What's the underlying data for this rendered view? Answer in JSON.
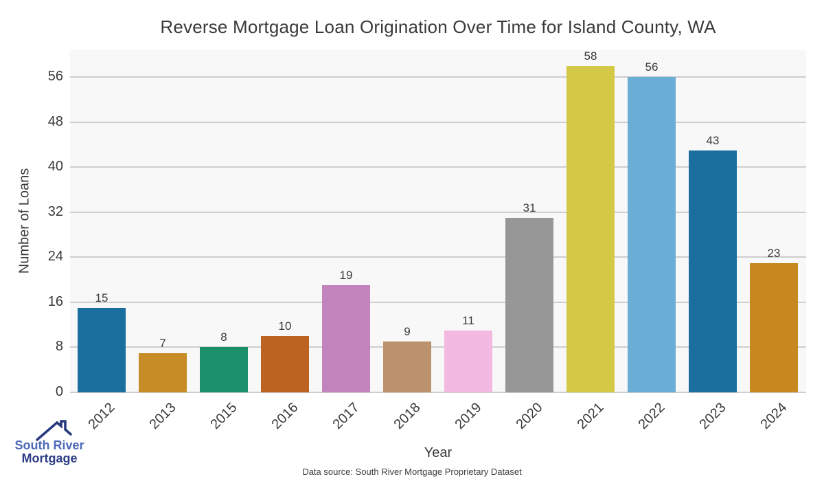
{
  "footer": {
    "source": "Data source: South River Mortgage Proprietary Dataset"
  },
  "logo": {
    "line1": "South River",
    "line2": "Mortgage",
    "roof_color": "#283a7e"
  },
  "chart_data": {
    "type": "bar",
    "title": "Reverse Mortgage Loan Origination Over Time for Island County, WA",
    "xlabel": "Year",
    "ylabel": "Number of Loans",
    "categories": [
      "2012",
      "2013",
      "2015",
      "2016",
      "2017",
      "2018",
      "2019",
      "2020",
      "2021",
      "2022",
      "2023",
      "2024"
    ],
    "values": [
      15,
      7,
      8,
      10,
      19,
      9,
      11,
      31,
      58,
      56,
      43,
      23
    ],
    "bar_colors": [
      "#1a6f9f",
      "#c78c26",
      "#1b8e6a",
      "#bc6321",
      "#c384bd",
      "#bb926c",
      "#f3b9e0",
      "#979797",
      "#d3c947",
      "#6aaed6",
      "#1a6f9f",
      "#c8871f"
    ],
    "yticks": [
      0,
      8,
      16,
      24,
      32,
      40,
      48,
      56
    ],
    "ylim": [
      0,
      60.8
    ],
    "grid": true,
    "legend": "none",
    "plot_bg": "#f8f8f8",
    "grid_color": "#cecece",
    "label_color": "#3a3a3a"
  }
}
